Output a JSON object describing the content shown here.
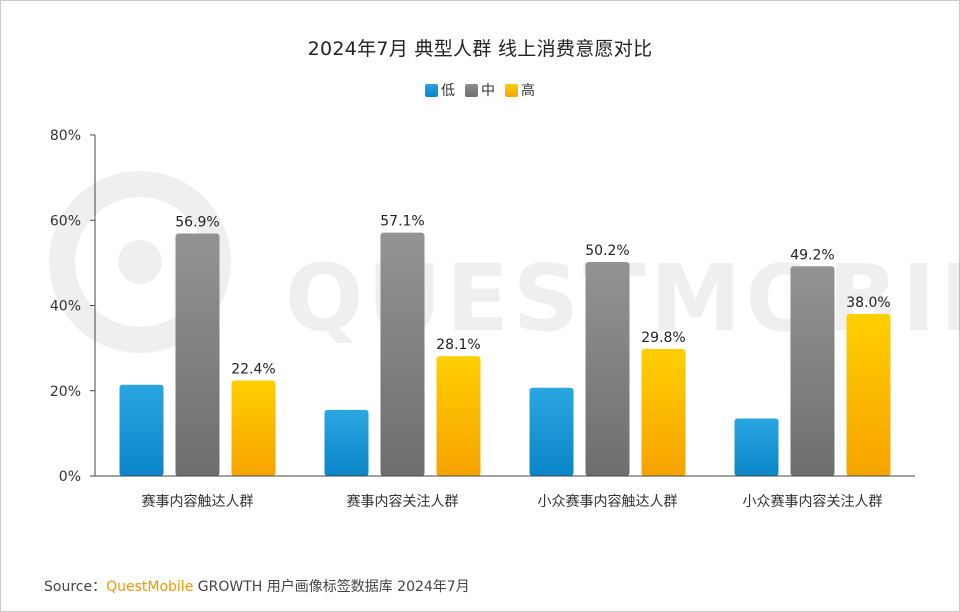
{
  "title": "2024年7月 典型人群 线上消费意愿对比",
  "watermark": "QUESTMOBILE",
  "source": {
    "label": "Source：",
    "brand": "QuestMobile",
    "text": " GROWTH 用户画像标签数据库 2024年7月"
  },
  "legend": [
    {
      "label": "低",
      "color": "#1a9ad6"
    },
    {
      "label": "中",
      "color": "#808080"
    },
    {
      "label": "高",
      "color": "#ffbf00"
    }
  ],
  "chart_data": {
    "type": "bar",
    "title": "2024年7月 典型人群 线上消费意愿对比",
    "categories": [
      "赛事内容触达人群",
      "赛事内容关注人群",
      "小众赛事内容触达人群",
      "小众赛事内容关注人群"
    ],
    "series": [
      {
        "name": "低",
        "values": [
          21.4,
          15.5,
          20.7,
          13.5
        ],
        "color": "#1a9ad6",
        "labeled": false
      },
      {
        "name": "中",
        "values": [
          56.9,
          57.1,
          50.2,
          49.2
        ],
        "color": "#808080",
        "labeled": true
      },
      {
        "name": "高",
        "values": [
          22.4,
          28.1,
          29.8,
          38.0
        ],
        "color": "#ffbf00",
        "labeled": true
      }
    ],
    "ylim": [
      0,
      80
    ],
    "yticks": [
      0,
      20,
      40,
      60,
      80
    ],
    "ytick_labels": [
      "0%",
      "20%",
      "40%",
      "60%",
      "80%"
    ],
    "data_labels": [
      [
        "",
        "",
        "",
        ""
      ],
      [
        "56.9%",
        "57.1%",
        "50.2%",
        "49.2%"
      ],
      [
        "22.4%",
        "28.1%",
        "29.8%",
        "38.0%"
      ]
    ],
    "grid": false,
    "legend_position": "top-center"
  }
}
